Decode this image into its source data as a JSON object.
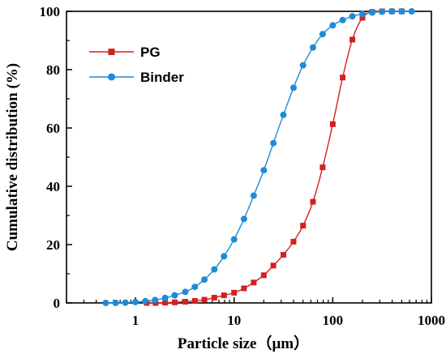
{
  "chart_data": {
    "type": "line",
    "xlabel": "Particle size（μm）",
    "ylabel": "Cumulative distribution (%)",
    "xscale": "log",
    "xlim": [
      0.2,
      1000
    ],
    "ylim": [
      0,
      100
    ],
    "xticks": [
      1,
      10,
      100,
      1000
    ],
    "xtick_labels": [
      "1",
      "10",
      "100",
      "1000"
    ],
    "yticks": [
      0,
      20,
      40,
      60,
      80,
      100
    ],
    "ytick_labels": [
      "0",
      "20",
      "40",
      "60",
      "80",
      "100"
    ],
    "grid": false,
    "legend_position": "top-left",
    "series": [
      {
        "name": "PG",
        "color": "#d42020",
        "marker": "square",
        "points": [
          [
            1.3,
            0
          ],
          [
            1.6,
            0
          ],
          [
            2.0,
            0.1
          ],
          [
            2.5,
            0.2
          ],
          [
            3.2,
            0.4
          ],
          [
            4.0,
            0.7
          ],
          [
            5.0,
            1.1
          ],
          [
            6.3,
            1.8
          ],
          [
            7.9,
            2.6
          ],
          [
            10,
            3.5
          ],
          [
            12.6,
            5.0
          ],
          [
            15.8,
            7.0
          ],
          [
            20,
            9.5
          ],
          [
            25,
            12.8
          ],
          [
            31.6,
            16.5
          ],
          [
            40,
            21.0
          ],
          [
            50,
            26.5
          ],
          [
            63,
            34.7
          ],
          [
            79,
            46.5
          ],
          [
            100,
            61.3
          ],
          [
            126,
            77.3
          ],
          [
            158,
            90.3
          ],
          [
            200,
            97.8
          ],
          [
            251,
            99.8
          ],
          [
            316,
            100
          ],
          [
            398,
            100
          ],
          [
            501,
            100
          ]
        ]
      },
      {
        "name": "Binder",
        "color": "#1e8bd8",
        "marker": "circle",
        "points": [
          [
            0.5,
            0
          ],
          [
            0.63,
            0
          ],
          [
            0.79,
            0.1
          ],
          [
            1.0,
            0.3
          ],
          [
            1.26,
            0.6
          ],
          [
            1.58,
            1.0
          ],
          [
            2.0,
            1.7
          ],
          [
            2.5,
            2.6
          ],
          [
            3.2,
            3.8
          ],
          [
            4.0,
            5.5
          ],
          [
            5.0,
            8.0
          ],
          [
            6.3,
            11.5
          ],
          [
            7.9,
            16.0
          ],
          [
            10,
            21.8
          ],
          [
            12.6,
            28.8
          ],
          [
            15.8,
            36.8
          ],
          [
            20,
            45.5
          ],
          [
            25,
            54.8
          ],
          [
            31.6,
            64.5
          ],
          [
            40,
            73.8
          ],
          [
            50,
            81.5
          ],
          [
            63,
            87.6
          ],
          [
            79,
            92.2
          ],
          [
            100,
            95.2
          ],
          [
            126,
            97.0
          ],
          [
            158,
            98.3
          ],
          [
            200,
            99.1
          ],
          [
            251,
            99.6
          ],
          [
            316,
            99.9
          ],
          [
            398,
            100
          ],
          [
            501,
            100
          ],
          [
            631,
            100
          ]
        ]
      }
    ]
  }
}
